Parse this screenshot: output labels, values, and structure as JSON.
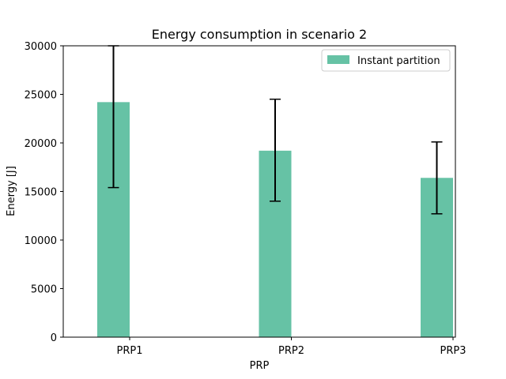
{
  "chart_data": {
    "type": "bar",
    "title": "Energy consumption in scenario 2",
    "xlabel": "PRP",
    "ylabel": "Energy [J]",
    "categories": [
      "PRP1",
      "PRP2",
      "PRP3"
    ],
    "ylim": [
      0,
      30000
    ],
    "yticks": [
      0,
      5000,
      10000,
      15000,
      20000,
      25000,
      30000
    ],
    "grid": false,
    "legend_position": "top-right",
    "series": [
      {
        "name": "Instant partition",
        "color": "#66c2a5",
        "values": [
          24200,
          19200,
          16400
        ],
        "error_low": [
          15400,
          14000,
          12700
        ],
        "error_high": [
          30000,
          24500,
          20100
        ]
      }
    ]
  }
}
